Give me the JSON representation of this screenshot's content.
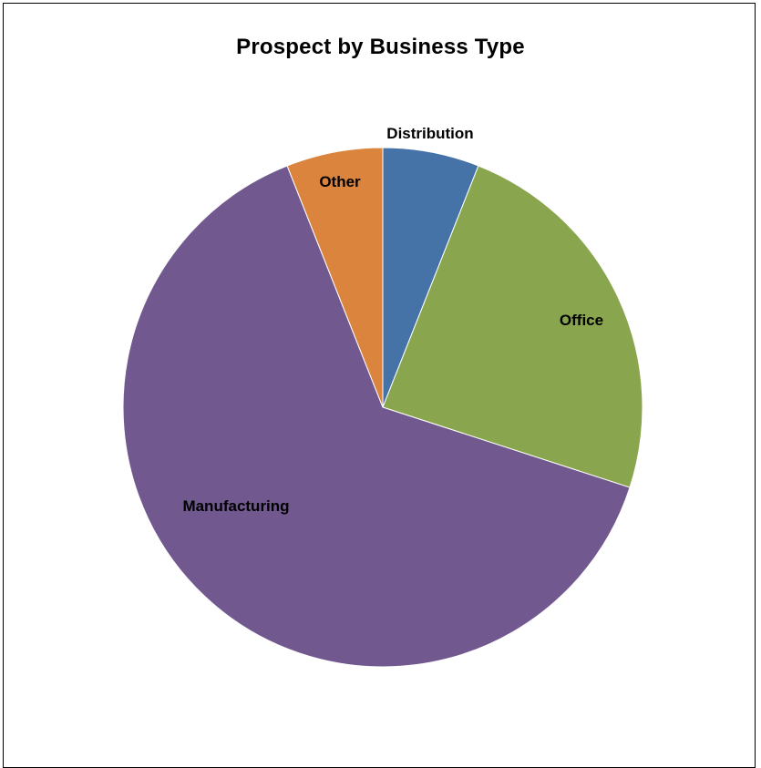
{
  "chart_data": {
    "type": "pie",
    "title": "Prospect by Business Type",
    "start_angle_deg": 0,
    "direction": "clockwise",
    "slices": [
      {
        "label": "Distribution",
        "value": 6,
        "color": "#4572A7"
      },
      {
        "label": "Office",
        "value": 24,
        "color": "#89A54E"
      },
      {
        "label": "Manufacturing",
        "value": 64,
        "color": "#71588F"
      },
      {
        "label": "Other",
        "value": 6,
        "color": "#DB843D"
      }
    ]
  }
}
